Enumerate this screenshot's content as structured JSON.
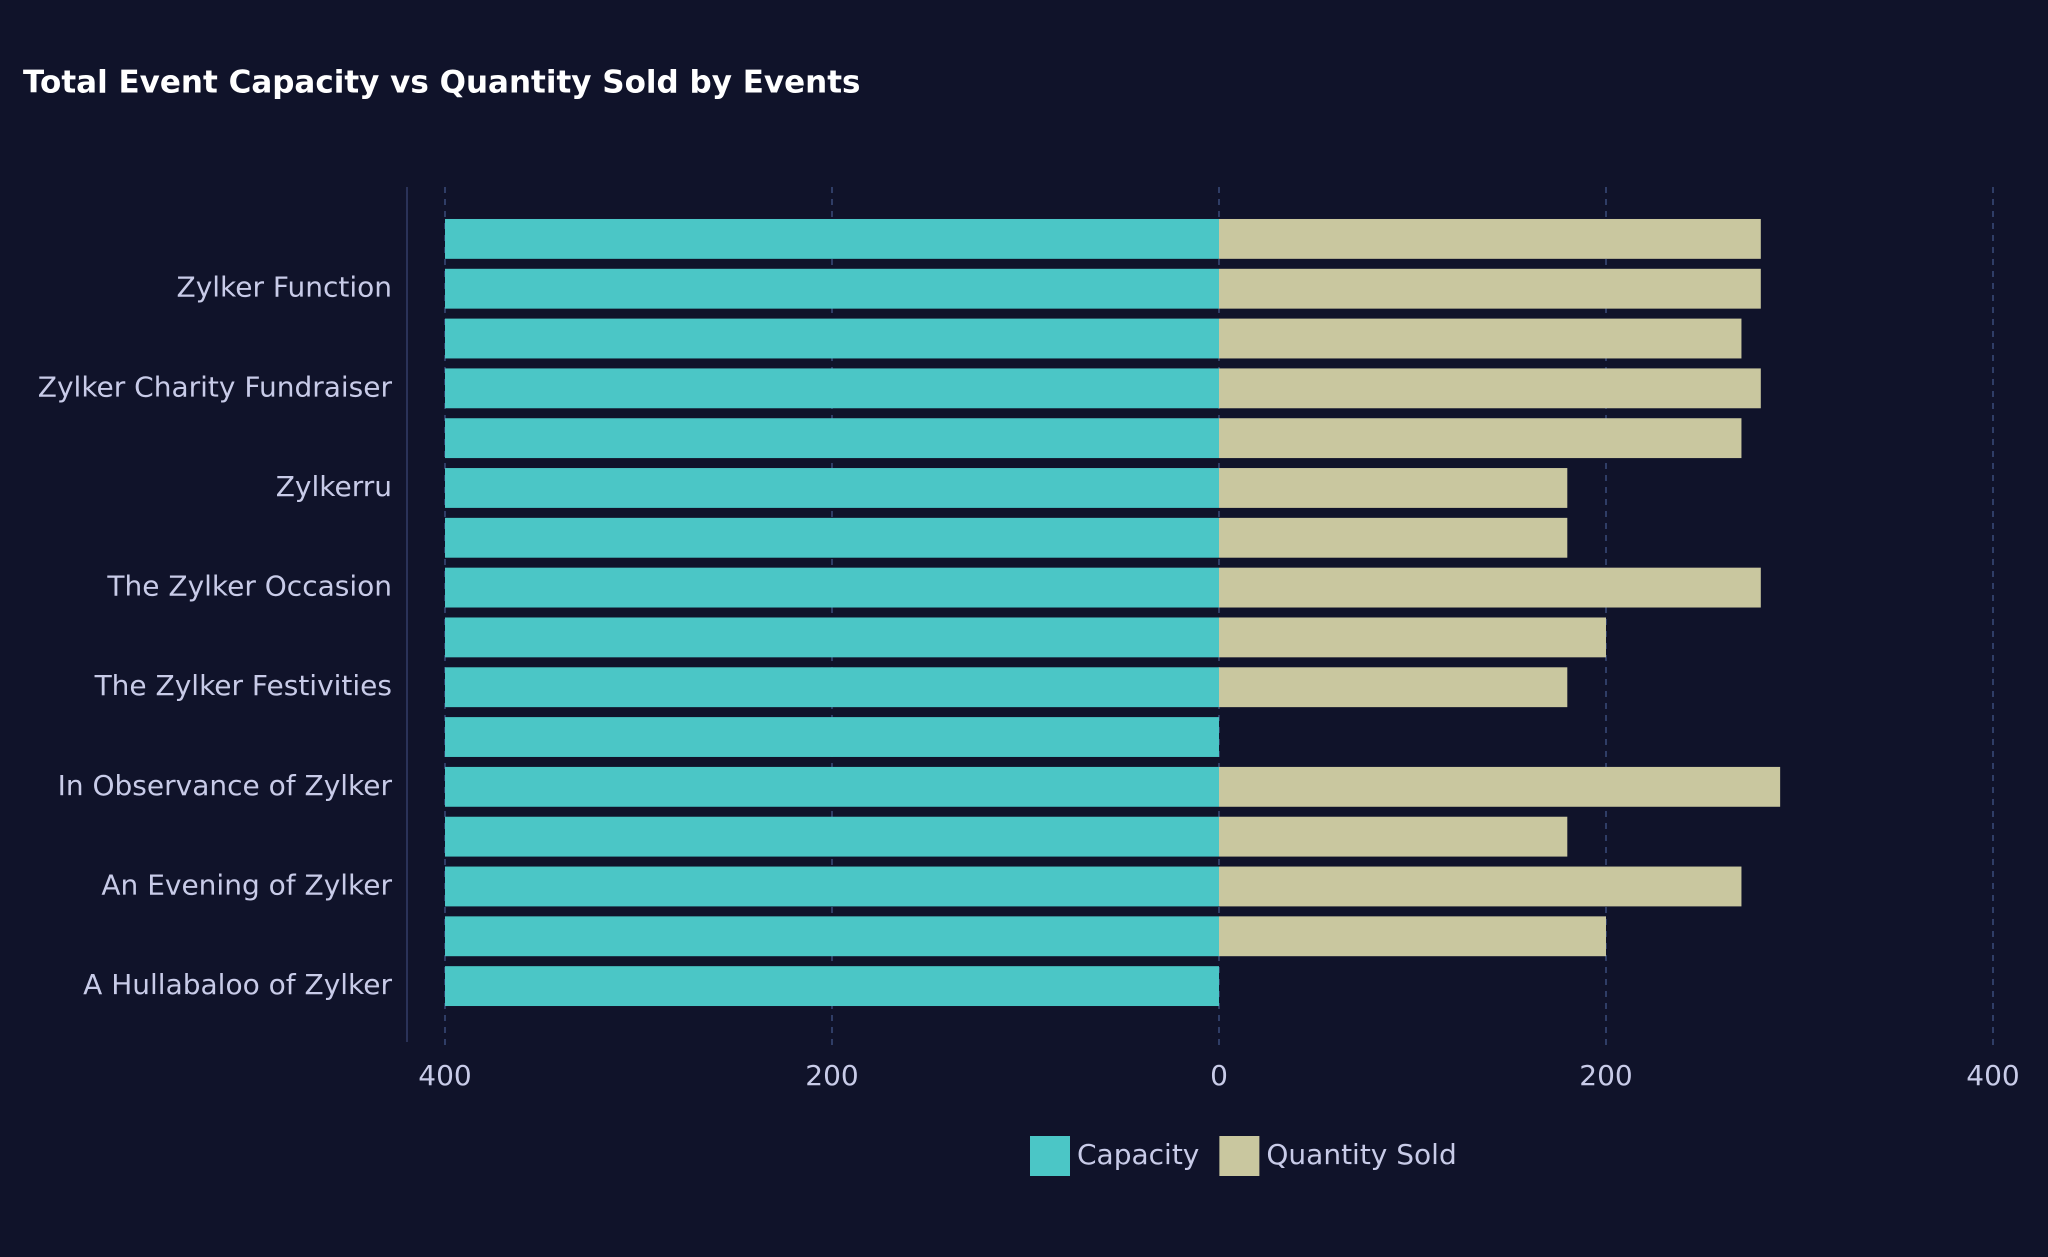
{
  "chart_data": {
    "type": "butterfly",
    "title": "Total Event Capacity vs Quantity Sold by Events",
    "categories": [
      null,
      "Zylker Function",
      null,
      "Zylker Charity Fundraiser",
      null,
      "Zylkerru",
      null,
      "The Zylker Occasion",
      null,
      "The Zylker Festivities",
      null,
      "In Observance of Zylker",
      null,
      "An Evening of Zylker",
      null,
      "A Hullabaloo of Zylker"
    ],
    "series": [
      {
        "name": "Capacity",
        "color": "#4bc6c6",
        "values": [
          400,
          400,
          400,
          400,
          400,
          400,
          400,
          400,
          400,
          400,
          400,
          400,
          400,
          400,
          400,
          400
        ]
      },
      {
        "name": "Quantity Sold",
        "color": "#c9c79f",
        "values": [
          280,
          280,
          270,
          280,
          270,
          180,
          180,
          280,
          200,
          180,
          0,
          290,
          180,
          270,
          200,
          0
        ]
      }
    ],
    "xlim": [
      -400,
      400
    ],
    "xticks": [
      {
        "value": -400,
        "label": "400"
      },
      {
        "value": -200,
        "label": "200"
      },
      0,
      200,
      400
    ],
    "grid": true,
    "legend": "bottom"
  }
}
